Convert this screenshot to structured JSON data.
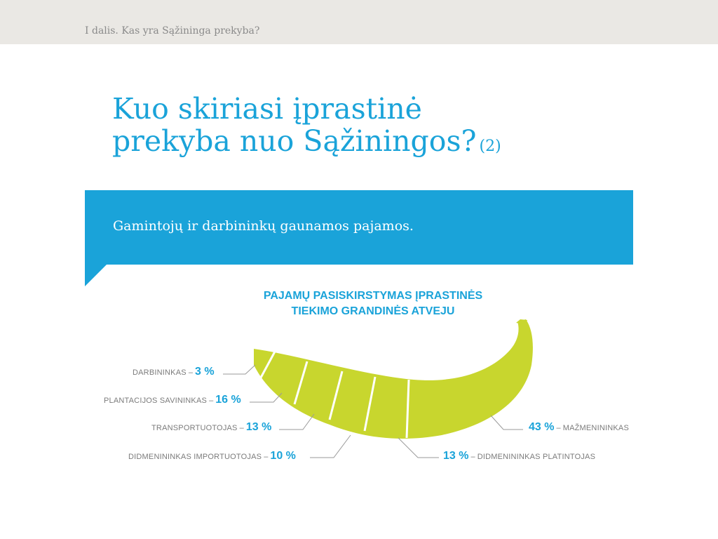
{
  "header": {
    "section": "I dalis. Kas yra Sąžininga prekyba?"
  },
  "title": {
    "line1": "Kuo skiriasi įprastinė",
    "line2": "prekyba nuo Sąžiningos?",
    "suffix": "(2)"
  },
  "banner": {
    "text": "Gamintojų ir darbininkų gaunamos pajamos."
  },
  "colors": {
    "accent": "#1aa3d9",
    "banana": "#c8d62e",
    "header_bg": "#eae8e4",
    "label_gray": "#7b7b7b"
  },
  "chart_data": {
    "type": "pie",
    "title_line1": "PAJAMŲ PASISKIRSTYMAS ĮPRASTINĖS",
    "title_line2": "TIEKIMO GRANDINĖS ATVEJU",
    "unit": "%",
    "segments": [
      {
        "label": "DARBININKAS",
        "value": 3,
        "value_text": "3 %"
      },
      {
        "label": "PLANTACIJOS SAVININKAS",
        "value": 16,
        "value_text": "16 %"
      },
      {
        "label": "TRANSPORTUOTOJAS",
        "value": 13,
        "value_text": "13 %"
      },
      {
        "label": "DIDMENININKAS IMPORTUOTOJAS",
        "value": 10,
        "value_text": "10 %"
      },
      {
        "label": "DIDMENININKAS PLATINTOJAS",
        "value": 13,
        "value_text": "13 %"
      },
      {
        "label": "MAŽMENININKAS",
        "value": 43,
        "value_text": "43 %"
      }
    ]
  }
}
